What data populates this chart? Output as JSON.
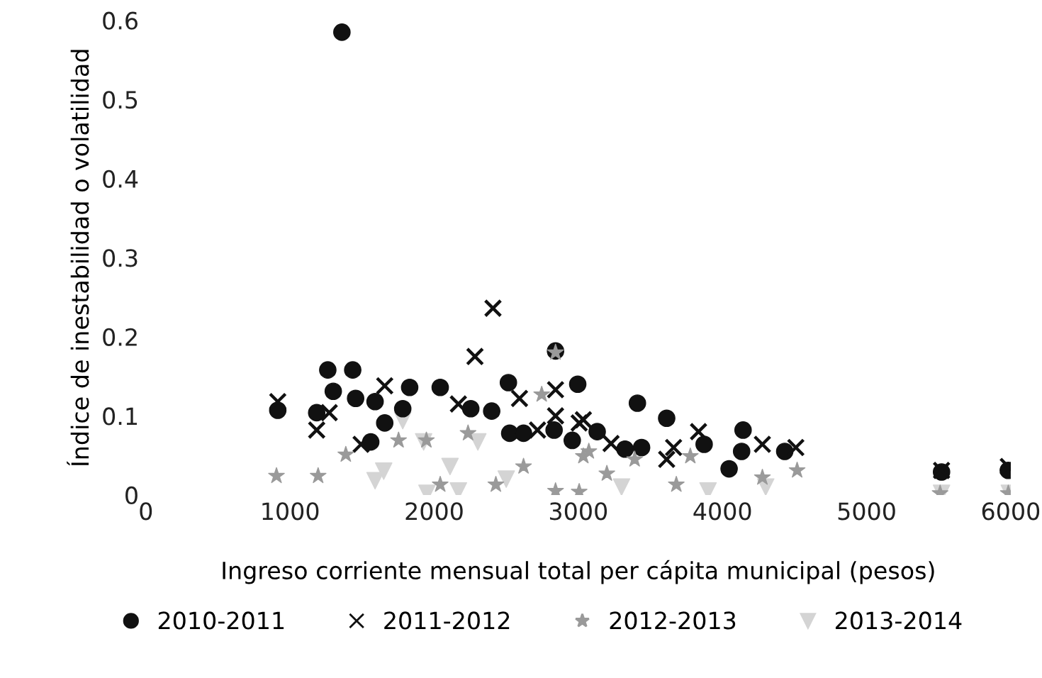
{
  "chart_data": {
    "type": "scatter",
    "xlabel": "Ingreso corriente mensual total per cápita municipal (pesos)",
    "ylabel": "Índice de inestabilidad o volatilidad",
    "xlim": [
      0,
      6000
    ],
    "xticks": [
      0,
      1000,
      2000,
      3000,
      4000,
      5000,
      6000
    ],
    "ylim": [
      0,
      0.6
    ],
    "yticks": [
      0,
      0.1,
      0.2,
      0.3,
      0.4,
      0.5,
      0.6
    ],
    "grid": false,
    "legend": "bottom",
    "series": [
      {
        "name": "2010-2011",
        "color": "#111111",
        "marker": "circle",
        "x": [
          1360,
          915,
          1262,
          1435,
          1300,
          1185,
          1455,
          1590,
          1830,
          2042,
          1657,
          1560,
          1782,
          2254,
          2399,
          2515,
          2524,
          2620,
          2842,
          2996,
          2832,
          2958,
          3131,
          3410,
          3613,
          3439,
          3324,
          3873,
          4143,
          4133,
          4046,
          4432,
          5520,
          5983
        ],
        "values": [
          0.585,
          0.107,
          0.158,
          0.158,
          0.131,
          0.104,
          0.122,
          0.118,
          0.136,
          0.136,
          0.091,
          0.067,
          0.109,
          0.109,
          0.106,
          0.142,
          0.078,
          0.078,
          0.182,
          0.14,
          0.082,
          0.069,
          0.08,
          0.116,
          0.097,
          0.06,
          0.058,
          0.064,
          0.082,
          0.055,
          0.033,
          0.055,
          0.029,
          0.031
        ]
      },
      {
        "name": "2011-2012",
        "color": "#111111",
        "marker": "cross",
        "x": [
          915,
          1185,
          1272,
          1657,
          2283,
          2408,
          2842,
          2592,
          2717,
          2842,
          3006,
          1493,
          2168,
          3035,
          3227,
          3661,
          3613,
          3834,
          4277,
          4509,
          5520,
          5983
        ],
        "values": [
          0.118,
          0.082,
          0.104,
          0.138,
          0.175,
          0.236,
          0.133,
          0.122,
          0.082,
          0.1,
          0.091,
          0.064,
          0.115,
          0.095,
          0.065,
          0.06,
          0.045,
          0.08,
          0.064,
          0.06,
          0.031,
          0.036
        ]
      },
      {
        "name": "2012-2013",
        "color": "#9a9a9a",
        "marker": "star",
        "x": [
          1387,
          1195,
          1946,
          1753,
          2235,
          2620,
          2746,
          2842,
          3035,
          2842,
          2042,
          2428,
          906,
          3006,
          3073,
          3198,
          3391,
          3680,
          3777,
          4277,
          4518,
          5510,
          5983
        ],
        "values": [
          0.051,
          0.024,
          0.069,
          0.069,
          0.078,
          0.036,
          0.127,
          0.18,
          0.049,
          0.005,
          0.013,
          0.013,
          0.024,
          0.004,
          0.055,
          0.027,
          0.045,
          0.013,
          0.049,
          0.022,
          0.031,
          0.002,
          0.002
        ]
      },
      {
        "name": "2013-2014",
        "color": "#d4d4d4",
        "marker": "triangle",
        "x": [
          1782,
          1927,
          2110,
          1590,
          2168,
          1950,
          2303,
          1650,
          2500,
          3300,
          3900,
          4300,
          5520,
          5990
        ],
        "values": [
          0.094,
          0.067,
          0.036,
          0.018,
          0.005,
          0.002,
          0.067,
          0.03,
          0.02,
          0.01,
          0.005,
          0.01,
          0.002,
          0.002
        ]
      }
    ]
  }
}
